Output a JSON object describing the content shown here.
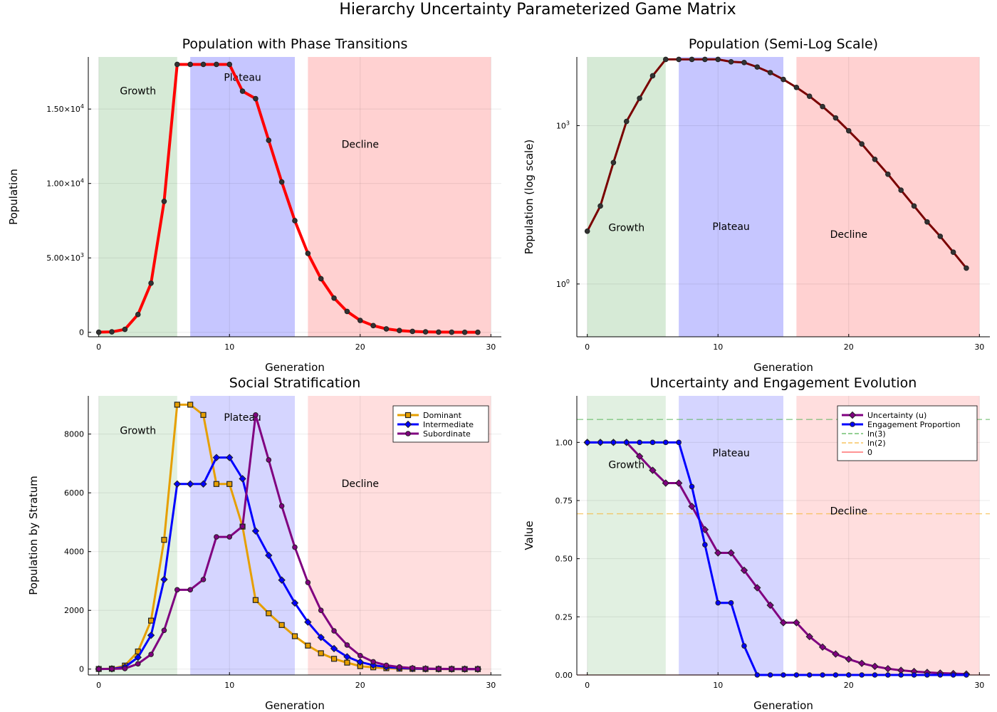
{
  "figure_title": "Hierarchy Uncertainty Parameterized Game Matrix",
  "colors": {
    "growth_band": "#c8e3c8",
    "plateau_band": "#b3b3ff",
    "decline_band": "#ffc2c2",
    "dominant": "#e69f00",
    "intermediate": "#0000ff",
    "subordinate": "#800080",
    "uncertainty": "#800080",
    "engagement": "#0000ff",
    "ln3": "#55b355",
    "ln2": "#f5b942",
    "zero": "#ff5555"
  },
  "chart_data": [
    {
      "type": "line",
      "title": "Population with Phase Transitions",
      "xlabel": "Generation",
      "ylabel": "Population",
      "xlim": [
        -0.8,
        30.8
      ],
      "ylim": [
        -300,
        18500
      ],
      "x_ticks": [
        0,
        10,
        20,
        30
      ],
      "y_ticks": [
        {
          "v": 0,
          "label": "0"
        },
        {
          "v": 5000,
          "label": "5.00×10",
          "exp": "3"
        },
        {
          "v": 10000,
          "label": "1.00×10",
          "exp": "4"
        },
        {
          "v": 15000,
          "label": "1.50×10",
          "exp": "4"
        }
      ],
      "grid": true,
      "phases": [
        {
          "name": "Growth",
          "from": 0,
          "to": 6,
          "color_key": "growth_band",
          "label_x": 3,
          "label_y": 16000
        },
        {
          "name": "Plateau",
          "from": 7,
          "to": 15,
          "color_key": "plateau_band",
          "label_x": 11,
          "label_y": 16900
        },
        {
          "name": "Decline",
          "from": 16,
          "to": 30,
          "color_key": "decline_band",
          "label_x": 20,
          "label_y": 12400
        }
      ],
      "series": [
        {
          "color": "#ff0000",
          "marker": "circle",
          "x": [
            0,
            1,
            2,
            3,
            4,
            5,
            6,
            7,
            8,
            9,
            10,
            11,
            12,
            13,
            14,
            15,
            16,
            17,
            18,
            19,
            20,
            21,
            22,
            23,
            24,
            25,
            26,
            27,
            28,
            29
          ],
          "values": [
            10,
            30,
            200,
            1200,
            3300,
            8800,
            18000,
            18000,
            18000,
            18000,
            18000,
            16200,
            15700,
            12900,
            10100,
            7500,
            5300,
            3600,
            2300,
            1400,
            800,
            450,
            230,
            120,
            60,
            30,
            15,
            8,
            4,
            2
          ]
        }
      ]
    },
    {
      "type": "line",
      "title": "Population (Semi-Log Scale)",
      "xlabel": "Generation",
      "ylabel": "Population (log scale)",
      "log_y": true,
      "xlim": [
        -0.8,
        30.8
      ],
      "ylim": [
        0.1,
        20000
      ],
      "x_ticks": [
        0,
        10,
        20,
        30
      ],
      "y_ticks": [
        {
          "v": 1,
          "label": "10",
          "exp": "0"
        },
        {
          "v": 1000,
          "label": "10",
          "exp": "3"
        }
      ],
      "grid": true,
      "phases": [
        {
          "name": "Growth",
          "from": 0,
          "to": 6,
          "color_key": "growth_band",
          "label_x": 3,
          "label_y": 10
        },
        {
          "name": "Plateau",
          "from": 7,
          "to": 15,
          "color_key": "plateau_band",
          "label_x": 11,
          "label_y": 10.5
        },
        {
          "name": "Decline",
          "from": 16,
          "to": 30,
          "color_key": "decline_band",
          "label_x": 20,
          "label_y": 7.5
        }
      ],
      "series": [
        {
          "color": "#7a0000",
          "marker": "circle",
          "x": [
            0,
            1,
            2,
            3,
            4,
            5,
            6,
            7,
            8,
            9,
            10,
            11,
            12,
            13,
            14,
            15,
            16,
            17,
            18,
            19,
            20,
            21,
            22,
            23,
            24,
            25,
            26,
            27,
            28,
            29
          ],
          "values": [
            10,
            30,
            200,
            1200,
            3300,
            8800,
            18000,
            18000,
            18000,
            18000,
            18000,
            16200,
            15700,
            12900,
            10100,
            7500,
            5300,
            3600,
            2300,
            1400,
            800,
            450,
            230,
            120,
            60,
            30,
            15,
            8,
            4,
            2
          ]
        }
      ]
    },
    {
      "type": "line",
      "title": "Social Stratification",
      "xlabel": "Generation",
      "ylabel": "Population by Stratum",
      "xlim": [
        -0.8,
        30.8
      ],
      "ylim": [
        -200,
        9300
      ],
      "x_ticks": [
        0,
        10,
        20,
        30
      ],
      "y_ticks": [
        {
          "v": 0,
          "label": "0"
        },
        {
          "v": 2000,
          "label": "2000"
        },
        {
          "v": 4000,
          "label": "4000"
        },
        {
          "v": 6000,
          "label": "6000"
        },
        {
          "v": 8000,
          "label": "8000"
        }
      ],
      "grid": true,
      "phases": [
        {
          "name": "Growth",
          "from": 0,
          "to": 6,
          "color_key": "growth_band",
          "label_x": 3,
          "label_y": 8000
        },
        {
          "name": "Plateau",
          "from": 7,
          "to": 15,
          "color_key": "plateau_band",
          "label_x": 11,
          "label_y": 8450
        },
        {
          "name": "Decline",
          "from": 16,
          "to": 30,
          "color_key": "decline_band",
          "label_x": 20,
          "label_y": 6200
        }
      ],
      "legend": "top-right",
      "series": [
        {
          "name": "Dominant",
          "color": "#e69f00",
          "marker": "square",
          "x": [
            0,
            1,
            2,
            3,
            4,
            5,
            6,
            7,
            8,
            9,
            10,
            11,
            12,
            13,
            14,
            15,
            16,
            17,
            18,
            19,
            20,
            21,
            22,
            23,
            24,
            25,
            26,
            27,
            28,
            29
          ],
          "values": [
            4,
            12,
            120,
            600,
            1650,
            4400,
            9000,
            9000,
            8650,
            6300,
            6300,
            4850,
            2350,
            1900,
            1500,
            1120,
            800,
            540,
            350,
            220,
            100,
            60,
            30,
            15,
            8,
            4,
            2,
            1,
            0,
            0
          ]
        },
        {
          "name": "Intermediate",
          "color": "#0000ff",
          "marker": "diamond",
          "x": [
            0,
            1,
            2,
            3,
            4,
            5,
            6,
            7,
            8,
            9,
            10,
            11,
            12,
            13,
            14,
            15,
            16,
            17,
            18,
            19,
            20,
            21,
            22,
            23,
            24,
            25,
            26,
            27,
            28,
            29
          ],
          "values": [
            3,
            10,
            70,
            400,
            1150,
            3050,
            6300,
            6300,
            6300,
            7200,
            7200,
            6480,
            4700,
            3870,
            3030,
            2250,
            1600,
            1080,
            700,
            420,
            240,
            135,
            70,
            35,
            18,
            9,
            5,
            2,
            1,
            0
          ]
        },
        {
          "name": "Subordinate",
          "color": "#800080",
          "marker": "circle",
          "x": [
            0,
            1,
            2,
            3,
            4,
            5,
            6,
            7,
            8,
            9,
            10,
            11,
            12,
            13,
            14,
            15,
            16,
            17,
            18,
            19,
            20,
            21,
            22,
            23,
            24,
            25,
            26,
            27,
            28,
            29
          ],
          "values": [
            3,
            8,
            20,
            180,
            500,
            1320,
            2700,
            2700,
            3050,
            4500,
            4500,
            4860,
            8650,
            7120,
            5550,
            4150,
            2950,
            2000,
            1300,
            820,
            460,
            250,
            130,
            70,
            36,
            18,
            9,
            5,
            3,
            1
          ]
        }
      ]
    },
    {
      "type": "line",
      "title": "Uncertainty and Engagement Evolution",
      "xlabel": "Generation",
      "ylabel": "Value",
      "xlim": [
        -0.8,
        30.8
      ],
      "ylim": [
        0,
        1.2
      ],
      "x_ticks": [
        0,
        10,
        20,
        30
      ],
      "y_ticks": [
        {
          "v": 0,
          "label": "0.00"
        },
        {
          "v": 0.25,
          "label": "0.25"
        },
        {
          "v": 0.5,
          "label": "0.50"
        },
        {
          "v": 0.75,
          "label": "0.75"
        },
        {
          "v": 1.0,
          "label": "1.00"
        }
      ],
      "grid": true,
      "phases": [
        {
          "name": "Growth",
          "from": 0,
          "to": 6,
          "color_key": "growth_band",
          "label_x": 3,
          "label_y": 0.89
        },
        {
          "name": "Plateau",
          "from": 7,
          "to": 15,
          "color_key": "plateau_band",
          "label_x": 11,
          "label_y": 0.94
        },
        {
          "name": "Decline",
          "from": 16,
          "to": 30,
          "color_key": "decline_band",
          "label_x": 20,
          "label_y": 0.69
        }
      ],
      "legend": "top-right",
      "series": [
        {
          "name": "Uncertainty (u)",
          "color": "#800080",
          "marker": "diamond",
          "x": [
            0,
            1,
            2,
            3,
            4,
            5,
            6,
            7,
            8,
            9,
            10,
            11,
            12,
            13,
            14,
            15,
            16,
            17,
            18,
            19,
            20,
            21,
            22,
            23,
            24,
            25,
            26,
            27,
            28,
            29
          ],
          "values": [
            1.0,
            1.0,
            1.0,
            1.0,
            0.94,
            0.88,
            0.825,
            0.825,
            0.725,
            0.625,
            0.525,
            0.525,
            0.45,
            0.375,
            0.3,
            0.225,
            0.225,
            0.165,
            0.12,
            0.09,
            0.068,
            0.05,
            0.037,
            0.027,
            0.02,
            0.015,
            0.011,
            0.008,
            0.006,
            0.004
          ]
        },
        {
          "name": "Engagement Proportion",
          "color": "#0000ff",
          "marker": "circle",
          "x": [
            0,
            1,
            2,
            3,
            4,
            5,
            6,
            7,
            8,
            9,
            10,
            11,
            12,
            13,
            14,
            15,
            16,
            17,
            18,
            19,
            20,
            21,
            22,
            23,
            24,
            25,
            26,
            27,
            28,
            29
          ],
          "values": [
            1.0,
            1.0,
            1.0,
            1.0,
            1.0,
            1.0,
            1.0,
            1.0,
            0.81,
            0.56,
            0.31,
            0.31,
            0.125,
            0,
            0,
            0,
            0,
            0,
            0,
            0,
            0,
            0,
            0,
            0,
            0,
            0,
            0,
            0,
            0,
            0
          ]
        }
      ],
      "reference_lines": [
        {
          "name": "ln(3)",
          "value": 1.0986,
          "color": "#55b355"
        },
        {
          "name": "ln(2)",
          "value": 0.6931,
          "color": "#f5b942"
        },
        {
          "name": "0",
          "value": 0,
          "color": "#ff5555"
        }
      ]
    }
  ]
}
